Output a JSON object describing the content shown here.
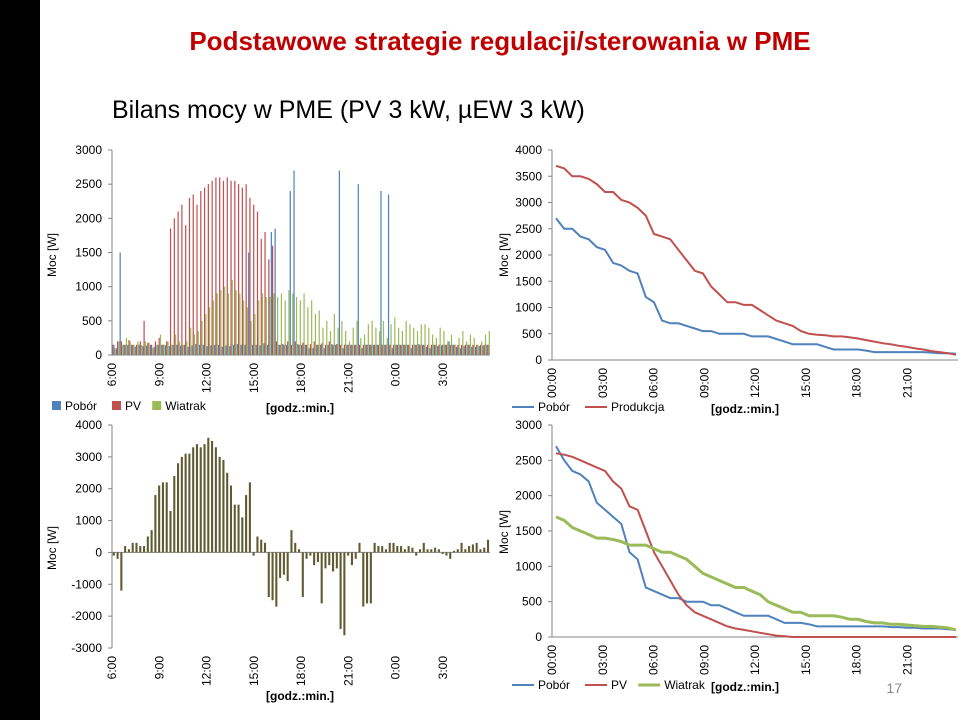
{
  "slide": {
    "title": "Podstawowe strategie regulacji/sterowania w PME",
    "page_number": "17",
    "colors": {
      "title": "#c00000",
      "left_bar": "#000000"
    }
  },
  "chart_data": [
    {
      "id": "c1",
      "type": "bar",
      "title": "Bilans mocy w PME (PV 3 kW, µEW 3 kW)",
      "xlabel": "[godz.:min.]",
      "ylabel": "Moc [W]",
      "ylim": [
        0,
        3000
      ],
      "yticks": [
        "0",
        "500",
        "1000",
        "1500",
        "2000",
        "2500",
        "3000"
      ],
      "xticks": [
        "6:00",
        "9:00",
        "12:00",
        "15:00",
        "18:00",
        "21:00",
        "0:00",
        "3:00"
      ],
      "grid": false,
      "legend": "bottom-left",
      "series": [
        {
          "name": "Pobór",
          "color": "#4f81bd",
          "values": [
            150,
            100,
            1500,
            150,
            150,
            150,
            120,
            150,
            130,
            140,
            150,
            120,
            150,
            150,
            140,
            130,
            150,
            150,
            140,
            150,
            120,
            140,
            160,
            150,
            150,
            130,
            140,
            150,
            150,
            120,
            140,
            130,
            150,
            160,
            150,
            150,
            1500,
            150,
            150,
            140,
            170,
            150,
            1800,
            1850,
            150,
            160,
            150,
            2400,
            2700,
            160,
            150,
            150,
            100,
            100,
            150,
            150,
            100,
            150,
            160,
            150,
            2700,
            100,
            150,
            150,
            150,
            2500,
            100,
            150,
            150,
            150,
            150,
            2400,
            150,
            2350,
            100,
            150,
            150,
            150,
            150,
            100,
            150,
            160,
            150,
            120,
            100,
            150,
            130,
            140,
            150,
            200,
            150,
            120,
            100,
            130,
            150,
            120,
            120,
            130,
            140,
            150
          ]
        },
        {
          "name": "PV",
          "color": "#c0504d",
          "values": [
            150,
            200,
            200,
            150,
            220,
            150,
            150,
            200,
            500,
            180,
            150,
            200,
            250,
            150,
            200,
            1850,
            2000,
            2100,
            2200,
            1900,
            2300,
            2350,
            2200,
            2400,
            2450,
            2500,
            2550,
            2600,
            2600,
            2550,
            2600,
            2550,
            2550,
            2500,
            2450,
            2500,
            2300,
            2200,
            2100,
            1700,
            1800,
            1400,
            1600,
            200,
            150,
            150,
            200,
            150,
            200,
            150,
            180,
            150,
            160,
            200,
            150,
            170,
            150,
            200,
            150,
            160,
            150,
            150,
            150,
            150,
            150,
            150,
            150,
            150,
            150,
            150,
            150,
            150,
            150,
            150,
            150,
            150,
            150,
            150,
            150,
            150,
            150,
            150,
            150,
            150,
            150,
            150,
            150,
            150,
            150,
            150,
            150,
            150,
            150,
            150,
            150,
            150,
            150,
            150,
            150,
            150
          ]
        },
        {
          "name": "Wiatrak",
          "color": "#9bbb59",
          "values": [
            100,
            200,
            150,
            250,
            200,
            150,
            200,
            150,
            200,
            180,
            100,
            150,
            300,
            150,
            200,
            150,
            300,
            200,
            150,
            200,
            400,
            300,
            350,
            500,
            600,
            700,
            800,
            900,
            950,
            1000,
            900,
            1100,
            950,
            900,
            800,
            700,
            500,
            600,
            800,
            900,
            850,
            850,
            900,
            850,
            900,
            800,
            950,
            900,
            850,
            800,
            900,
            700,
            800,
            600,
            650,
            400,
            500,
            350,
            600,
            400,
            500,
            350,
            200,
            400,
            500,
            250,
            300,
            450,
            500,
            400,
            350,
            500,
            250,
            450,
            550,
            400,
            350,
            500,
            450,
            400,
            350,
            450,
            450,
            400,
            300,
            250,
            400,
            350,
            200,
            300,
            150,
            250,
            350,
            200,
            300,
            250,
            150,
            200,
            300,
            350
          ]
        }
      ]
    },
    {
      "id": "c2",
      "type": "line",
      "xlabel": "[godz.:min.]",
      "ylabel": "Moc [W]",
      "ylim": [
        0,
        4000
      ],
      "yticks": [
        "0",
        "500",
        "1000",
        "1500",
        "2000",
        "2500",
        "3000",
        "3500",
        "4000"
      ],
      "xticks": [
        "00:00",
        "03:00",
        "06:00",
        "09:00",
        "12:00",
        "15:00",
        "18:00",
        "21:00"
      ],
      "grid": false,
      "legend": "bottom-left",
      "series": [
        {
          "name": "Pobór",
          "color": "#4f81bd",
          "values": [
            2700,
            2500,
            2500,
            2350,
            2300,
            2150,
            2100,
            1850,
            1800,
            1700,
            1650,
            1200,
            1100,
            750,
            700,
            700,
            650,
            600,
            550,
            550,
            500,
            500,
            500,
            500,
            450,
            450,
            450,
            400,
            350,
            300,
            300,
            300,
            300,
            250,
            200,
            200,
            200,
            200,
            180,
            150,
            150,
            150,
            150,
            150,
            150,
            150,
            140,
            130,
            130,
            120
          ]
        },
        {
          "name": "Produkcja",
          "color": "#c0504d",
          "values": [
            3700,
            3650,
            3500,
            3500,
            3450,
            3350,
            3200,
            3200,
            3050,
            3000,
            2900,
            2750,
            2400,
            2350,
            2300,
            2100,
            1900,
            1700,
            1650,
            1400,
            1250,
            1100,
            1100,
            1050,
            1050,
            950,
            850,
            750,
            700,
            650,
            550,
            500,
            480,
            470,
            450,
            450,
            430,
            410,
            380,
            350,
            320,
            300,
            270,
            250,
            220,
            200,
            170,
            150,
            130,
            100
          ]
        }
      ]
    },
    {
      "id": "c3",
      "type": "bar",
      "xlabel": "[godz.:min.]",
      "ylabel": "Moc [W]",
      "ylim": [
        -3000,
        4000
      ],
      "yticks": [
        "-3000",
        "-2000",
        "-1000",
        "0",
        "1000",
        "2000",
        "3000",
        "4000"
      ],
      "xticks": [
        "6:00",
        "9:00",
        "12:00",
        "15:00",
        "18:00",
        "21:00",
        "0:00",
        "3:00"
      ],
      "grid": false,
      "series": [
        {
          "name": "",
          "color": "#5f5a30",
          "values": [
            -100,
            -200,
            -1200,
            200,
            100,
            300,
            300,
            200,
            200,
            500,
            700,
            1800,
            2100,
            2200,
            2200,
            1300,
            2400,
            2800,
            3000,
            3100,
            3100,
            3300,
            3400,
            3300,
            3400,
            3600,
            3500,
            3300,
            3000,
            2900,
            2500,
            2100,
            1500,
            1500,
            1100,
            1800,
            2200,
            -100,
            500,
            400,
            300,
            -1400,
            -1500,
            -1700,
            -800,
            -700,
            -900,
            700,
            300,
            100,
            -1400,
            -200,
            -100,
            -400,
            -300,
            -1600,
            -500,
            -400,
            -600,
            -500,
            -2400,
            -2600,
            -100,
            -400,
            -200,
            300,
            -1700,
            -1600,
            -1600,
            300,
            200,
            200,
            100,
            300,
            300,
            200,
            200,
            100,
            200,
            150,
            -100,
            100,
            300,
            100,
            100,
            150,
            100,
            -50,
            -100,
            -200,
            50,
            100,
            300,
            100,
            200,
            250,
            300,
            100,
            150,
            400
          ]
        }
      ]
    },
    {
      "id": "c4",
      "type": "line",
      "xlabel": "[godz.:min.]",
      "ylabel": "Moc [W]",
      "ylim": [
        0,
        3000
      ],
      "yticks": [
        "0",
        "500",
        "1000",
        "1500",
        "2000",
        "2500",
        "3000"
      ],
      "xticks": [
        "00:00",
        "03:00",
        "06:00",
        "09:00",
        "12:00",
        "15:00",
        "18:00",
        "21:00"
      ],
      "grid": false,
      "legend": "bottom-left",
      "series": [
        {
          "name": "Pobór",
          "color": "#4f81bd",
          "values": [
            2700,
            2500,
            2350,
            2300,
            2200,
            1900,
            1800,
            1700,
            1600,
            1200,
            1100,
            700,
            650,
            600,
            550,
            550,
            500,
            500,
            500,
            450,
            450,
            400,
            350,
            300,
            300,
            300,
            300,
            250,
            200,
            200,
            200,
            180,
            150,
            150,
            150,
            150,
            150,
            150,
            150,
            150,
            150,
            140,
            140,
            130,
            130,
            120,
            120,
            120,
            110,
            100
          ]
        },
        {
          "name": "PV",
          "color": "#c0504d",
          "values": [
            2600,
            2580,
            2550,
            2500,
            2450,
            2400,
            2350,
            2200,
            2100,
            1850,
            1800,
            1500,
            1200,
            1000,
            800,
            600,
            450,
            350,
            300,
            250,
            200,
            150,
            120,
            100,
            80,
            60,
            40,
            20,
            10,
            0,
            0,
            0,
            0,
            0,
            0,
            0,
            0,
            0,
            0,
            0,
            0,
            0,
            0,
            0,
            0,
            0,
            0,
            0,
            0,
            0
          ]
        },
        {
          "name": "Wiatrak",
          "color": "#9bbb59",
          "values": [
            1700,
            1650,
            1550,
            1500,
            1450,
            1400,
            1400,
            1380,
            1350,
            1300,
            1300,
            1300,
            1250,
            1200,
            1200,
            1150,
            1100,
            1000,
            900,
            850,
            800,
            750,
            700,
            700,
            650,
            600,
            500,
            450,
            400,
            350,
            350,
            300,
            300,
            300,
            300,
            280,
            250,
            250,
            220,
            200,
            200,
            180,
            180,
            170,
            160,
            150,
            150,
            140,
            130,
            100
          ]
        }
      ]
    }
  ]
}
